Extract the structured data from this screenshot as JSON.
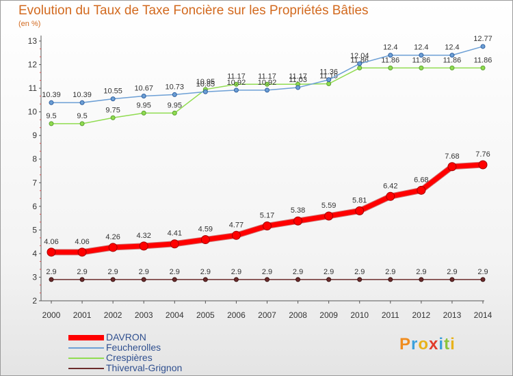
{
  "title": "Evolution du Taux de Taxe Foncière sur les Propriétés Bâties",
  "subtitle": "(en %)",
  "chart_data": {
    "type": "line",
    "title": "Evolution du Taux de Taxe Foncière sur les Propriétés Bâties",
    "ylabel": "(en %)",
    "xlabel": "",
    "x": [
      "2000",
      "2001",
      "2002",
      "2003",
      "2004",
      "2005",
      "2006",
      "2007",
      "2008",
      "2009",
      "2010",
      "2011",
      "2012",
      "2013",
      "2014"
    ],
    "ylim": [
      2,
      13
    ],
    "yticks": [
      "2",
      "3",
      "4",
      "5",
      "6",
      "7",
      "8",
      "9",
      "10",
      "11",
      "12",
      "13"
    ],
    "grid": false,
    "legend_position": "bottom-left",
    "series": [
      {
        "name": "Thiverval-Grignon",
        "color": "#6b2c2c",
        "values": [
          2.9,
          2.9,
          2.9,
          2.9,
          2.9,
          2.9,
          2.9,
          2.9,
          2.9,
          2.9,
          2.9,
          2.9,
          2.9,
          2.9,
          2.9
        ],
        "labels": [
          "2.9",
          "2.9",
          "2.9",
          "2.9",
          "2.9",
          "2.9",
          "2.9",
          "2.9",
          "2.9",
          "2.9",
          "2.9",
          "2.9",
          "2.9",
          "2.9",
          "2.9"
        ]
      },
      {
        "name": "Crespières",
        "color": "#90dc50",
        "values": [
          9.5,
          9.5,
          9.75,
          9.95,
          9.95,
          10.95,
          11.17,
          11.17,
          11.17,
          11.19,
          11.86,
          11.86,
          11.86,
          11.86,
          11.86
        ],
        "labels": [
          "9.5",
          "9.5",
          "9.75",
          "9.95",
          "9.95",
          "10.95",
          "11.17",
          "11.17",
          "11.17",
          "11.19",
          "11.86",
          "11.86",
          "11.86",
          "11.86",
          "11.86"
        ]
      },
      {
        "name": "Feucherolles",
        "color": "#6c9fd5",
        "values": [
          10.39,
          10.39,
          10.55,
          10.67,
          10.73,
          10.85,
          10.92,
          10.92,
          11.03,
          11.36,
          12.04,
          12.4,
          12.4,
          12.4,
          12.77
        ],
        "labels": [
          "10.39",
          "10.39",
          "10.55",
          "10.67",
          "10.73",
          "10.85",
          "10.92",
          "10.92",
          "11.03",
          "11.36",
          "12.04",
          "12.4",
          "12.4",
          "12.4",
          "12.77"
        ]
      },
      {
        "name": "DAVRON",
        "color": "#ff0000",
        "values": [
          4.06,
          4.06,
          4.26,
          4.32,
          4.41,
          4.59,
          4.77,
          5.17,
          5.38,
          5.59,
          5.81,
          6.42,
          6.68,
          7.68,
          7.76
        ],
        "labels": [
          "4.06",
          "4.06",
          "4.26",
          "4.32",
          "4.41",
          "4.59",
          "4.77",
          "5.17",
          "5.38",
          "5.59",
          "5.81",
          "6.42",
          "6.68",
          "7.68",
          "7.76"
        ]
      }
    ]
  },
  "legend": [
    {
      "label": "DAVRON",
      "color": "#ff0000"
    },
    {
      "label": "Feucherolles",
      "color": "#6c9fd5"
    },
    {
      "label": "Crespières",
      "color": "#90dc50"
    },
    {
      "label": "Thiverval-Grignon",
      "color": "#6b2c2c"
    }
  ],
  "logo": {
    "text": "Proxiti"
  }
}
